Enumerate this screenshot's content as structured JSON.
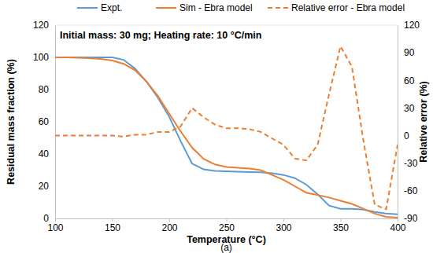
{
  "chart_data": {
    "type": "line",
    "annotation": "Initial mass: 30 mg; Heating rate: 10 °C/min",
    "caption": "(a)",
    "x_label": "Temperature (°C)",
    "y_label": "Residual mass fraction (%)",
    "y2_label": "Relative error (%)",
    "x": [
      100,
      110,
      120,
      130,
      140,
      150,
      160,
      170,
      180,
      190,
      200,
      210,
      220,
      230,
      240,
      250,
      260,
      270,
      280,
      290,
      300,
      310,
      320,
      330,
      340,
      350,
      360,
      370,
      380,
      390,
      400
    ],
    "series": [
      {
        "name": "Expt.",
        "color": "#5b9bd5",
        "line_style": "solid",
        "values": [
          100,
          100,
          100,
          100,
          100,
          100,
          98.5,
          93,
          85,
          75,
          63,
          48,
          34,
          30.5,
          29.5,
          29.3,
          29,
          28.8,
          28.7,
          28,
          27,
          25,
          21,
          15,
          8,
          6,
          6,
          5.5,
          4,
          3,
          2.5
        ]
      },
      {
        "name": "Sim - Ebra model",
        "color": "#ed7d31",
        "line_style": "solid",
        "values": [
          100,
          100,
          99.8,
          99.5,
          99,
          98,
          96,
          92,
          85,
          76,
          65,
          54,
          44,
          37,
          33.5,
          32,
          31.5,
          31,
          30,
          27,
          24,
          20,
          16,
          14.5,
          13,
          11,
          9,
          6,
          3,
          1,
          0.5
        ]
      },
      {
        "name": "Relative error - Ebra model",
        "color": "#ed7d31",
        "line_style": "dashed",
        "axis": "y2",
        "values": [
          0,
          0,
          0,
          0,
          0,
          0,
          -1,
          1,
          1,
          4,
          4,
          10,
          30,
          20,
          12,
          8,
          8,
          7,
          4,
          -3,
          -10,
          -25,
          -27,
          -10,
          45,
          97,
          75,
          -5,
          -75,
          -80,
          -10
        ]
      }
    ],
    "xlim": [
      100,
      400
    ],
    "xticks": [
      100,
      150,
      200,
      250,
      300,
      350,
      400
    ],
    "ylim": [
      0,
      120
    ],
    "yticks": [
      0,
      20,
      40,
      60,
      80,
      100,
      120
    ],
    "y2lim": [
      -90,
      120
    ],
    "y2ticks": [
      -90,
      -60,
      -30,
      0,
      30,
      60,
      90,
      120
    ],
    "grid": false
  }
}
